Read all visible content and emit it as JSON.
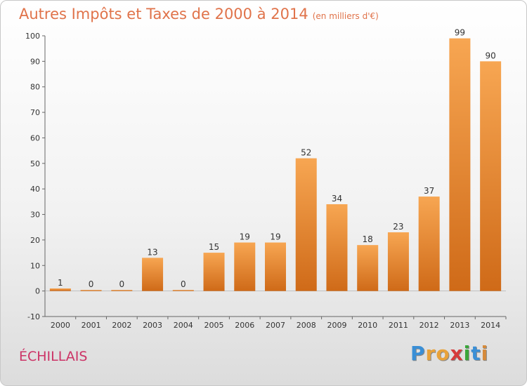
{
  "title": "Autres Impôts et Taxes de 2000 à 2014",
  "unit": "(en milliers d'€)",
  "commune": "ÉCHILLAIS",
  "logo": {
    "letters": [
      "P",
      "r",
      "o",
      "x",
      "i",
      "t",
      "i"
    ],
    "colors": [
      "#3a8fd6",
      "#e8a23a",
      "#e8a23a",
      "#d63a3a",
      "#3aa63a",
      "#3a8fd6",
      "#d68a3a"
    ]
  },
  "colors": {
    "bar_light": "#f7a652",
    "bar_dark": "#cf6a18",
    "title": "#e0734a",
    "commune": "#cc3366"
  },
  "chart_data": {
    "type": "bar",
    "categories": [
      "2000",
      "2001",
      "2002",
      "2003",
      "2004",
      "2005",
      "2006",
      "2007",
      "2008",
      "2009",
      "2010",
      "2011",
      "2012",
      "2013",
      "2014"
    ],
    "values": [
      1,
      0,
      0,
      13,
      0,
      15,
      19,
      19,
      52,
      34,
      18,
      23,
      37,
      99,
      90
    ],
    "ylim": [
      -10,
      100
    ],
    "yticks": [
      -10,
      0,
      10,
      20,
      30,
      40,
      50,
      60,
      70,
      80,
      90,
      100
    ],
    "grid": false,
    "legend": "none"
  }
}
